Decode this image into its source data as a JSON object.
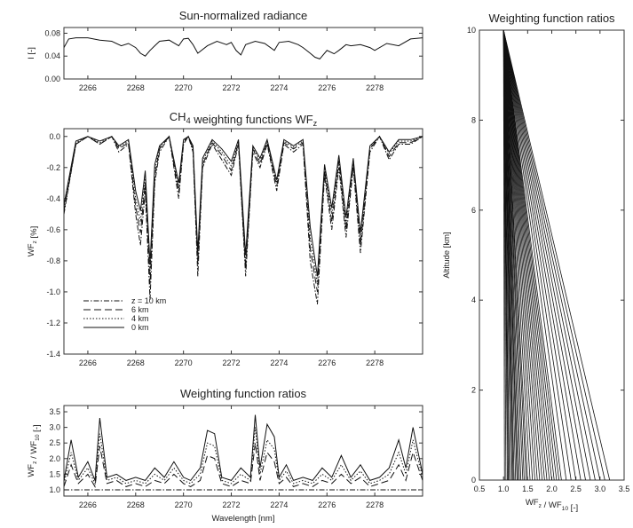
{
  "chart_data": [
    {
      "id": "radiance",
      "type": "line",
      "title": "Sun-normalized radiance",
      "ylabel": "I [-]",
      "xlabel": "",
      "xlim": [
        2265,
        2280
      ],
      "ylim": [
        0.0,
        0.09
      ],
      "xticks": [
        "2266",
        "2268",
        "2270",
        "2272",
        "2274",
        "2276",
        "2278"
      ],
      "yticks": [
        "0.00",
        "0.04",
        "0.08"
      ],
      "grid": false,
      "series": [
        {
          "x": [
            2265.0,
            2265.2,
            2265.5,
            2266.0,
            2266.5,
            2267.0,
            2267.4,
            2267.7,
            2268.0,
            2268.2,
            2268.4,
            2268.6,
            2268.8,
            2269.0,
            2269.4,
            2269.8,
            2270.0,
            2270.2,
            2270.4,
            2270.6,
            2271.0,
            2271.4,
            2271.8,
            2272.0,
            2272.2,
            2272.4,
            2272.6,
            2273.0,
            2273.4,
            2273.8,
            2274.0,
            2274.4,
            2274.8,
            2275.0,
            2275.3,
            2275.5,
            2275.7,
            2276.0,
            2276.3,
            2276.5,
            2276.8,
            2277.0,
            2277.4,
            2277.8,
            2278.0,
            2278.5,
            2279.0,
            2279.5,
            2280.0
          ],
          "y": [
            0.055,
            0.07,
            0.072,
            0.072,
            0.068,
            0.066,
            0.058,
            0.062,
            0.055,
            0.045,
            0.04,
            0.05,
            0.058,
            0.066,
            0.068,
            0.058,
            0.07,
            0.071,
            0.06,
            0.045,
            0.058,
            0.066,
            0.06,
            0.064,
            0.05,
            0.042,
            0.06,
            0.066,
            0.062,
            0.05,
            0.064,
            0.066,
            0.06,
            0.055,
            0.045,
            0.038,
            0.035,
            0.05,
            0.044,
            0.05,
            0.06,
            0.058,
            0.06,
            0.055,
            0.05,
            0.062,
            0.058,
            0.07,
            0.072
          ]
        }
      ]
    },
    {
      "id": "weighting-functions",
      "type": "line",
      "title": "CH4 weighting functions WFz",
      "ylabel": "WFz [%]",
      "xlabel": "",
      "xlim": [
        2265,
        2280
      ],
      "ylim": [
        -1.4,
        0.05
      ],
      "xticks": [
        "2266",
        "2268",
        "2270",
        "2272",
        "2274",
        "2276",
        "2278"
      ],
      "yticks": [
        "0.0",
        "-0.2",
        "-0.4",
        "-0.6",
        "-0.8",
        "-1.0",
        "-1.2",
        "-1.4"
      ],
      "legend": "bottom-left",
      "grid": false,
      "x": [
        2265.0,
        2265.5,
        2266.0,
        2266.5,
        2267.0,
        2267.3,
        2267.7,
        2268.0,
        2268.2,
        2268.4,
        2268.6,
        2268.8,
        2269.0,
        2269.4,
        2269.8,
        2270.0,
        2270.2,
        2270.4,
        2270.6,
        2270.8,
        2271.2,
        2271.6,
        2272.0,
        2272.3,
        2272.6,
        2272.9,
        2273.2,
        2273.5,
        2273.9,
        2274.2,
        2274.6,
        2275.0,
        2275.3,
        2275.6,
        2275.9,
        2276.2,
        2276.5,
        2276.8,
        2277.1,
        2277.4,
        2277.8,
        2278.2,
        2278.6,
        2279.0,
        2279.5,
        2280.0
      ],
      "series": [
        {
          "name": "z = 10 km",
          "y": [
            -0.5,
            -0.05,
            0.0,
            -0.05,
            0.0,
            -0.1,
            -0.05,
            -0.5,
            -0.7,
            -0.35,
            -1.05,
            -0.3,
            -0.1,
            0.0,
            -0.4,
            -0.05,
            0.0,
            -0.1,
            -0.9,
            -0.2,
            -0.05,
            -0.15,
            -0.25,
            -0.05,
            -0.9,
            -0.1,
            -0.2,
            -0.05,
            -0.35,
            -0.05,
            -0.1,
            -0.05,
            -0.8,
            -1.08,
            -0.25,
            -0.6,
            -0.2,
            -0.65,
            -0.2,
            -0.75,
            -0.1,
            0.0,
            -0.15,
            -0.05,
            -0.05,
            0.0
          ]
        },
        {
          "name": "6 km",
          "y": [
            -0.48,
            -0.05,
            0.0,
            -0.05,
            0.0,
            -0.08,
            -0.04,
            -0.45,
            -0.62,
            -0.3,
            -0.95,
            -0.26,
            -0.08,
            0.0,
            -0.36,
            -0.04,
            0.0,
            -0.08,
            -0.82,
            -0.18,
            -0.04,
            -0.12,
            -0.22,
            -0.04,
            -0.85,
            -0.08,
            -0.18,
            -0.04,
            -0.32,
            -0.04,
            -0.08,
            -0.04,
            -0.72,
            -1.0,
            -0.22,
            -0.55,
            -0.16,
            -0.6,
            -0.18,
            -0.7,
            -0.08,
            0.0,
            -0.13,
            -0.04,
            -0.04,
            0.0
          ]
        },
        {
          "name": "4 km",
          "y": [
            -0.46,
            -0.04,
            0.0,
            -0.04,
            0.0,
            -0.07,
            -0.03,
            -0.4,
            -0.55,
            -0.26,
            -0.88,
            -0.22,
            -0.07,
            0.0,
            -0.33,
            -0.03,
            0.0,
            -0.07,
            -0.78,
            -0.16,
            -0.03,
            -0.1,
            -0.19,
            -0.03,
            -0.8,
            -0.07,
            -0.16,
            -0.03,
            -0.3,
            -0.03,
            -0.07,
            -0.03,
            -0.65,
            -0.95,
            -0.2,
            -0.5,
            -0.14,
            -0.56,
            -0.16,
            -0.66,
            -0.07,
            0.0,
            -0.11,
            -0.03,
            -0.03,
            0.0
          ]
        },
        {
          "name": "0 km",
          "y": [
            -0.44,
            -0.03,
            0.0,
            -0.03,
            0.0,
            -0.06,
            -0.02,
            -0.35,
            -0.48,
            -0.22,
            -0.82,
            -0.18,
            -0.06,
            0.0,
            -0.3,
            -0.02,
            0.0,
            -0.06,
            -0.74,
            -0.14,
            -0.02,
            -0.08,
            -0.16,
            -0.02,
            -0.76,
            -0.06,
            -0.14,
            -0.02,
            -0.28,
            -0.02,
            -0.06,
            -0.02,
            -0.58,
            -0.9,
            -0.18,
            -0.46,
            -0.12,
            -0.52,
            -0.14,
            -0.62,
            -0.06,
            0.0,
            -0.1,
            -0.02,
            -0.02,
            0.0
          ]
        }
      ]
    },
    {
      "id": "ratios-spectral",
      "type": "line",
      "title": "Weighting function ratios",
      "ylabel": "WFz / WF10 [-]",
      "xlabel": "Wavelength [nm]",
      "xlim": [
        2265,
        2280
      ],
      "ylim": [
        0.8,
        3.7
      ],
      "xticks": [
        "2266",
        "2268",
        "2270",
        "2272",
        "2274",
        "2276",
        "2278"
      ],
      "yticks": [
        "1.0",
        "1.5",
        "2.0",
        "2.5",
        "3.0",
        "3.5"
      ],
      "grid": false,
      "x": [
        2265.0,
        2265.3,
        2265.6,
        2266.0,
        2266.3,
        2266.5,
        2266.8,
        2267.2,
        2267.6,
        2268.0,
        2268.4,
        2268.8,
        2269.2,
        2269.6,
        2270.0,
        2270.3,
        2270.7,
        2271.0,
        2271.3,
        2271.6,
        2272.0,
        2272.4,
        2272.8,
        2273.0,
        2273.2,
        2273.5,
        2273.8,
        2274.0,
        2274.3,
        2274.6,
        2275.0,
        2275.4,
        2275.8,
        2276.2,
        2276.6,
        2277.0,
        2277.4,
        2277.8,
        2278.2,
        2278.6,
        2279.0,
        2279.3,
        2279.6,
        2280.0
      ],
      "series": [
        {
          "name": "z = 10 km",
          "y": [
            1.0,
            1.0,
            1.0,
            1.0,
            1.0,
            1.0,
            1.0,
            1.0,
            1.0,
            1.0,
            1.0,
            1.0,
            1.0,
            1.0,
            1.0,
            1.0,
            1.0,
            1.0,
            1.0,
            1.0,
            1.0,
            1.0,
            1.0,
            1.0,
            1.0,
            1.0,
            1.0,
            1.0,
            1.0,
            1.0,
            1.0,
            1.0,
            1.0,
            1.0,
            1.0,
            1.0,
            1.0,
            1.0,
            1.0,
            1.0,
            1.0,
            1.0,
            1.0,
            1.0
          ]
        },
        {
          "name": "6 km",
          "y": [
            1.1,
            1.8,
            1.2,
            1.5,
            1.1,
            2.4,
            1.2,
            1.3,
            1.1,
            1.2,
            1.1,
            1.3,
            1.2,
            1.5,
            1.2,
            1.1,
            1.3,
            2.1,
            2.0,
            1.2,
            1.1,
            1.3,
            1.2,
            2.5,
            1.3,
            2.2,
            1.9,
            1.2,
            1.4,
            1.1,
            1.2,
            1.1,
            1.3,
            1.2,
            1.5,
            1.2,
            1.4,
            1.1,
            1.2,
            1.3,
            1.8,
            1.3,
            2.2,
            1.3
          ]
        },
        {
          "name": "4 km",
          "y": [
            1.2,
            2.2,
            1.3,
            1.7,
            1.2,
            2.8,
            1.3,
            1.4,
            1.2,
            1.3,
            1.2,
            1.5,
            1.3,
            1.7,
            1.3,
            1.2,
            1.5,
            2.5,
            2.4,
            1.3,
            1.2,
            1.5,
            1.3,
            3.0,
            1.5,
            2.6,
            2.3,
            1.3,
            1.6,
            1.2,
            1.3,
            1.2,
            1.5,
            1.3,
            1.8,
            1.3,
            1.6,
            1.2,
            1.3,
            1.5,
            2.2,
            1.5,
            2.6,
            1.4
          ]
        },
        {
          "name": "0 km",
          "y": [
            1.3,
            2.6,
            1.4,
            1.9,
            1.3,
            3.3,
            1.4,
            1.5,
            1.3,
            1.4,
            1.3,
            1.7,
            1.4,
            1.9,
            1.4,
            1.3,
            1.7,
            2.9,
            2.8,
            1.4,
            1.3,
            1.7,
            1.4,
            3.4,
            1.7,
            3.1,
            2.7,
            1.4,
            1.8,
            1.3,
            1.4,
            1.3,
            1.7,
            1.4,
            2.1,
            1.4,
            1.8,
            1.3,
            1.4,
            1.7,
            2.6,
            1.7,
            3.0,
            1.5
          ]
        }
      ]
    },
    {
      "id": "ratios-altitude",
      "type": "line",
      "title": "Weighting function ratios",
      "ylabel": "Altitude [km]",
      "xlabel": "WFz / WF10 [-]",
      "xlim": [
        0.5,
        3.5
      ],
      "ylim": [
        0,
        10
      ],
      "xticks": [
        "0.5",
        "1.0",
        "1.5",
        "2.0",
        "2.5",
        "3.0",
        "3.5"
      ],
      "yticks": [
        "0",
        "2",
        "4",
        "6",
        "8",
        "10"
      ],
      "grid": false,
      "note": "fan of many ratio profiles from 1.0 at 10 km to a range of surface values",
      "profile_altitudes": [
        10,
        0
      ],
      "surface_ratio_values": [
        1.02,
        1.05,
        1.08,
        1.1,
        1.12,
        1.15,
        1.18,
        1.2,
        1.22,
        1.25,
        1.28,
        1.3,
        1.33,
        1.36,
        1.4,
        1.43,
        1.47,
        1.5,
        1.55,
        1.6,
        1.65,
        1.7,
        1.75,
        1.8,
        1.85,
        1.9,
        1.95,
        2.0,
        2.05,
        2.1,
        2.15,
        2.2,
        2.3,
        2.4,
        2.5,
        2.6,
        2.7,
        2.8,
        2.9,
        3.0,
        3.1,
        3.2
      ]
    }
  ]
}
